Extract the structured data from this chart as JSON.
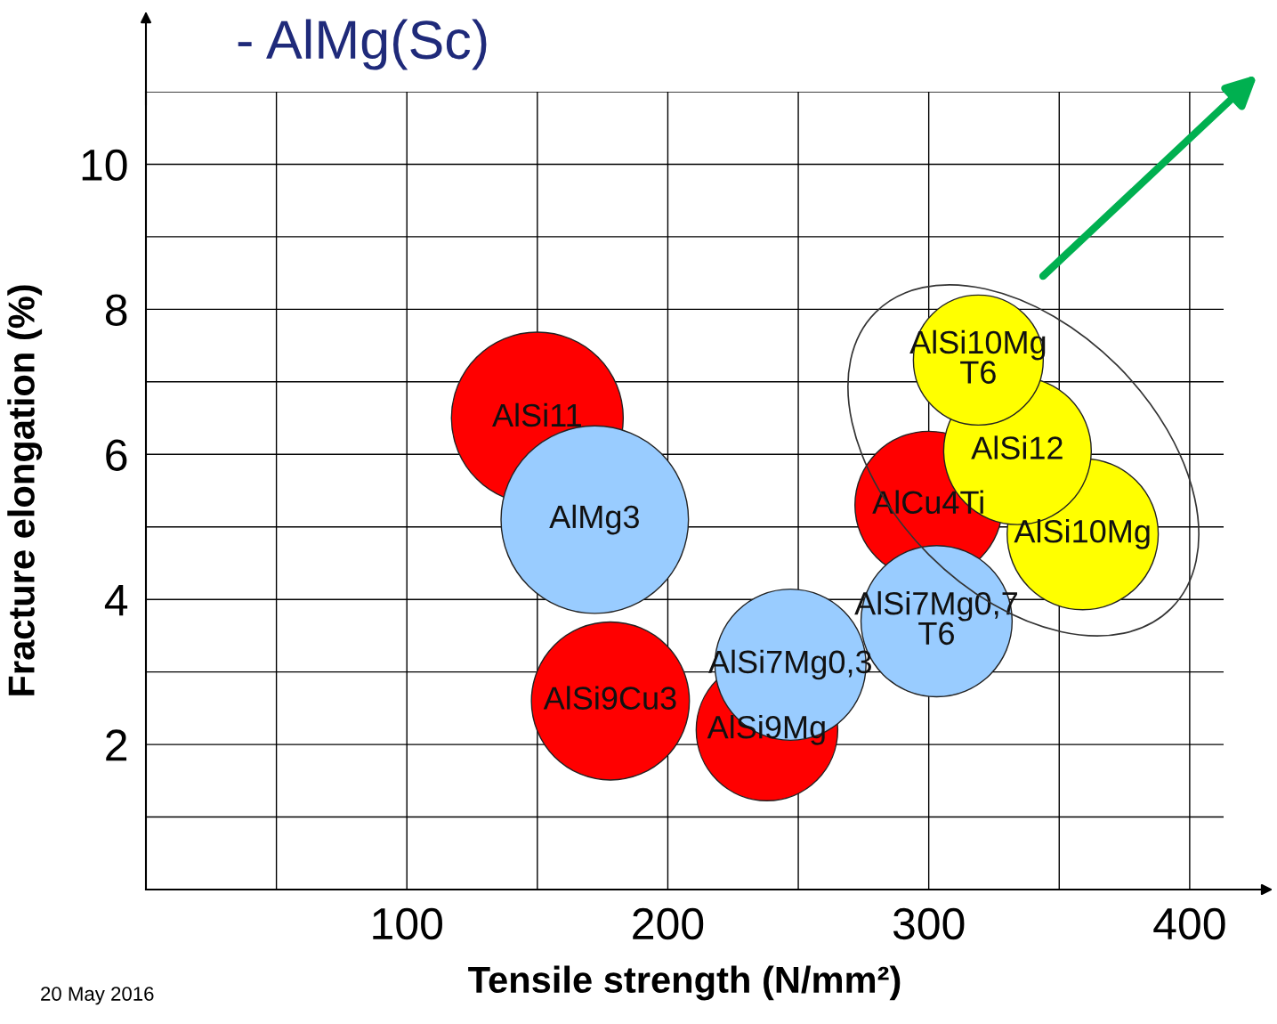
{
  "chart_data": {
    "type": "bubble",
    "title": "- AlMg(Sc)",
    "xlabel": "Tensile strength (N/mm²)",
    "ylabel": "Fracture elongation (%)",
    "annotations": [
      "20 May 2016"
    ],
    "xlim": [
      0,
      413
    ],
    "ylim": [
      0,
      11
    ],
    "xticks": [
      {
        "value": 50,
        "label": null
      },
      100,
      {
        "value": 150,
        "label": null
      },
      200,
      {
        "value": 250,
        "label": null
      },
      300,
      {
        "value": 350,
        "label": null
      },
      400
    ],
    "yticks": [
      {
        "value": 1,
        "label": null
      },
      2,
      {
        "value": 3,
        "label": null
      },
      4,
      {
        "value": 5,
        "label": null
      },
      6,
      {
        "value": 7,
        "label": null
      },
      8,
      {
        "value": 9,
        "label": null
      },
      10,
      {
        "value": 11,
        "label": null
      }
    ],
    "grid": true,
    "legend": false,
    "marker": "circle",
    "series": [
      {
        "name": "AlSi11",
        "color": "#ff0000",
        "x": [
          150
        ],
        "values": [
          6.5
        ],
        "sizes": [
          0.84
        ]
      },
      {
        "name": "AlMg3",
        "color": "#99ccff",
        "x": [
          172
        ],
        "values": [
          5.1
        ],
        "sizes": [
          1
        ]
      },
      {
        "name": "AlSi9Mg",
        "color": "#ff0000",
        "x": [
          238
        ],
        "values": [
          2.2
        ],
        "sizes": [
          0.57
        ]
      },
      {
        "name": "AlSi9Cu3",
        "color": "#ff0000",
        "x": [
          178
        ],
        "values": [
          2.6
        ],
        "sizes": [
          0.71
        ]
      },
      {
        "name": "AlSi7Mg0,3",
        "color": "#99ccff",
        "x": [
          247
        ],
        "values": [
          3.1
        ],
        "sizes": [
          0.65
        ]
      },
      {
        "name": "AlCu4Ti",
        "color": "#ff0000",
        "x": [
          300
        ],
        "values": [
          5.3
        ],
        "sizes": [
          0.62
        ]
      },
      {
        "name": "AlSi10Mg",
        "color": "#ffff00",
        "x": [
          359
        ],
        "values": [
          4.9
        ],
        "sizes": [
          0.65
        ]
      },
      {
        "name": "AlSi7Mg0,7\nT6",
        "color": "#99ccff",
        "x": [
          303
        ],
        "values": [
          3.7
        ],
        "sizes": [
          0.65
        ]
      },
      {
        "name": "AlSi12",
        "color": "#ffff00",
        "x": [
          334
        ],
        "values": [
          6.05
        ],
        "sizes": [
          0.62
        ]
      },
      {
        "name": "AlSi10Mg\nT6",
        "color": "#ffff00",
        "x": [
          319
        ],
        "values": [
          7.3
        ],
        "sizes": [
          0.48
        ]
      }
    ]
  }
}
